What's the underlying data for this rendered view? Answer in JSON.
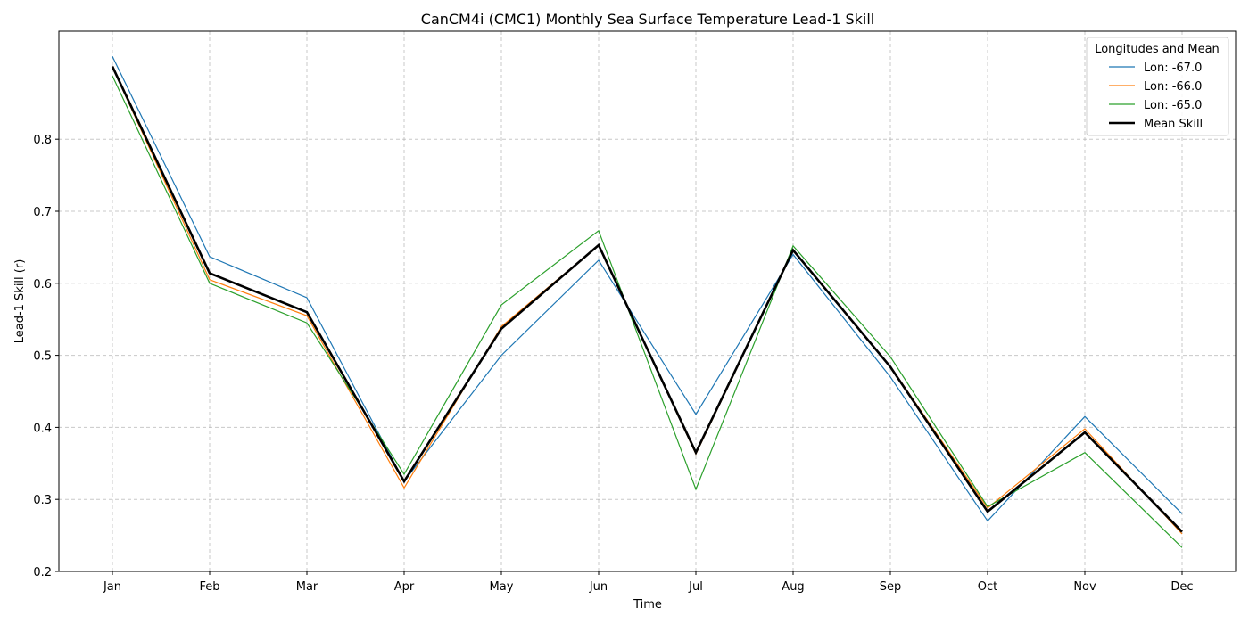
{
  "chart_data": {
    "type": "line",
    "title": "CanCM4i (CMC1) Monthly Sea Surface Temperature Lead-1 Skill",
    "xlabel": "Time",
    "ylabel": "Lead-1 Skill (r)",
    "categories": [
      "Jan",
      "Feb",
      "Mar",
      "Apr",
      "May",
      "Jun",
      "Jul",
      "Aug",
      "Sep",
      "Oct",
      "Nov",
      "Dec"
    ],
    "ylim": [
      0.2,
      0.95
    ],
    "yticks": [
      0.2,
      0.3,
      0.4,
      0.5,
      0.6,
      0.7,
      0.8
    ],
    "ytick_labels": [
      "0.2",
      "0.3",
      "0.4",
      "0.5",
      "0.6",
      "0.7",
      "0.8"
    ],
    "grid": true,
    "legend": {
      "title": "Longitudes and Mean",
      "placement": "top-right"
    },
    "series": [
      {
        "name": "Lon: -67.0",
        "color": "#1f77b4",
        "values": [
          0.915,
          0.637,
          0.58,
          0.325,
          0.5,
          0.632,
          0.418,
          0.64,
          0.47,
          0.27,
          0.415,
          0.28
        ]
      },
      {
        "name": "Lon: -66.0",
        "color": "#ff7f0e",
        "values": [
          0.9,
          0.605,
          0.555,
          0.316,
          0.54,
          0.653,
          0.363,
          0.645,
          0.485,
          0.288,
          0.398,
          0.252
        ]
      },
      {
        "name": "Lon: -65.0",
        "color": "#2ca02c",
        "values": [
          0.888,
          0.6,
          0.545,
          0.335,
          0.57,
          0.673,
          0.314,
          0.652,
          0.498,
          0.29,
          0.365,
          0.233
        ]
      },
      {
        "name": "Mean Skill",
        "color": "#000000",
        "values": [
          0.901,
          0.614,
          0.56,
          0.325,
          0.537,
          0.653,
          0.365,
          0.646,
          0.484,
          0.283,
          0.393,
          0.255
        ]
      }
    ]
  }
}
